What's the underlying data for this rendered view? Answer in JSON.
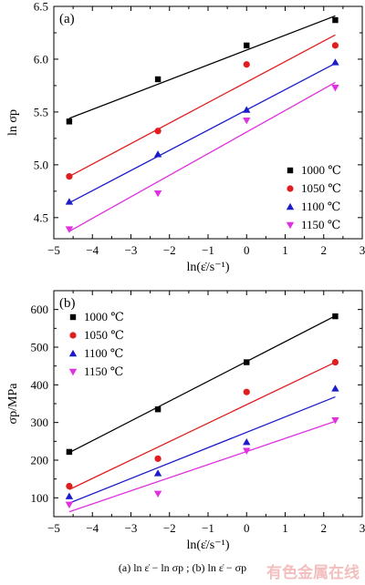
{
  "caption": "(a)  ln ε̇ − ln σp ; (b)  ln ε̇ − σp",
  "watermark": "有色金属在线",
  "colors": {
    "s1000": "#000000",
    "s1050": "#e01e1e",
    "s1100": "#1c1ccc",
    "s1150": "#e030e0"
  },
  "chart_data": [
    {
      "panel_label": "(a)",
      "type": "scatter",
      "xlabel": "ln(ε̇/s⁻¹)",
      "ylabel": "ln σp",
      "xlim": [
        -5,
        3
      ],
      "ylim": [
        4.3,
        6.5
      ],
      "xticks": [
        -5,
        -4,
        -3,
        -2,
        -1,
        0,
        1,
        2,
        3
      ],
      "yticks": [
        4.5,
        5.0,
        5.5,
        6.0,
        6.5
      ],
      "ytick_labels": [
        "4.5",
        "5.0",
        "5.5",
        "6.0",
        "6.5"
      ],
      "legend_position": "lower-right",
      "series": [
        {
          "name": "1000 ℃",
          "color_key": "s1000",
          "marker": "square",
          "x": [
            -4.6,
            -2.3,
            0,
            2.3
          ],
          "y": [
            5.41,
            5.81,
            6.13,
            6.37
          ],
          "fit": [
            [
              -4.6,
              5.44
            ],
            [
              2.3,
              6.41
            ]
          ]
        },
        {
          "name": "1050 ℃",
          "color_key": "s1050",
          "marker": "circle",
          "x": [
            -4.6,
            -2.3,
            0,
            2.3
          ],
          "y": [
            4.89,
            5.32,
            5.95,
            6.13
          ],
          "fit": [
            [
              -4.6,
              4.89
            ],
            [
              2.3,
              6.23
            ]
          ]
        },
        {
          "name": "1100 ℃",
          "color_key": "s1100",
          "marker": "triangle-up",
          "x": [
            -4.6,
            -2.3,
            0,
            2.3
          ],
          "y": [
            4.65,
            5.1,
            5.52,
            5.97
          ],
          "fit": [
            [
              -4.6,
              4.64
            ],
            [
              2.3,
              5.96
            ]
          ]
        },
        {
          "name": "1150 ℃",
          "color_key": "s1150",
          "marker": "triangle-down",
          "x": [
            -4.6,
            -2.3,
            0,
            2.3
          ],
          "y": [
            4.39,
            4.73,
            5.42,
            5.73
          ],
          "fit": [
            [
              -4.6,
              4.37
            ],
            [
              2.3,
              5.78
            ]
          ]
        }
      ]
    },
    {
      "panel_label": "(b)",
      "type": "scatter",
      "xlabel": "ln(ε̇/s⁻¹)",
      "ylabel": "σp/MPa",
      "xlim": [
        -5,
        3
      ],
      "ylim": [
        50,
        650
      ],
      "xticks": [
        -5,
        -4,
        -3,
        -2,
        -1,
        0,
        1,
        2,
        3
      ],
      "yticks": [
        100,
        200,
        300,
        400,
        500,
        600
      ],
      "ytick_labels": [
        "100",
        "200",
        "300",
        "400",
        "500",
        "600"
      ],
      "legend_position": "top-left",
      "series": [
        {
          "name": "1000 ℃",
          "color_key": "s1000",
          "marker": "square",
          "x": [
            -4.6,
            -2.3,
            0,
            2.3
          ],
          "y": [
            222,
            335,
            460,
            582
          ],
          "fit": [
            [
              -4.6,
              220
            ],
            [
              2.3,
              583
            ]
          ]
        },
        {
          "name": "1050 ℃",
          "color_key": "s1050",
          "marker": "circle",
          "x": [
            -4.6,
            -2.3,
            0,
            2.3
          ],
          "y": [
            131,
            204,
            381,
            460
          ],
          "fit": [
            [
              -4.6,
              122
            ],
            [
              2.3,
              460
            ]
          ]
        },
        {
          "name": "1100 ℃",
          "color_key": "s1100",
          "marker": "triangle-up",
          "x": [
            -4.6,
            -2.3,
            0,
            2.3
          ],
          "y": [
            104,
            165,
            248,
            390
          ],
          "fit": [
            [
              -4.6,
              86
            ],
            [
              2.3,
              368
            ]
          ]
        },
        {
          "name": "1150 ℃",
          "color_key": "s1150",
          "marker": "triangle-down",
          "x": [
            -4.6,
            -2.3,
            0,
            2.3
          ],
          "y": [
            82,
            111,
            225,
            306
          ],
          "fit": [
            [
              -4.6,
              63
            ],
            [
              2.3,
              303
            ]
          ]
        }
      ]
    }
  ]
}
